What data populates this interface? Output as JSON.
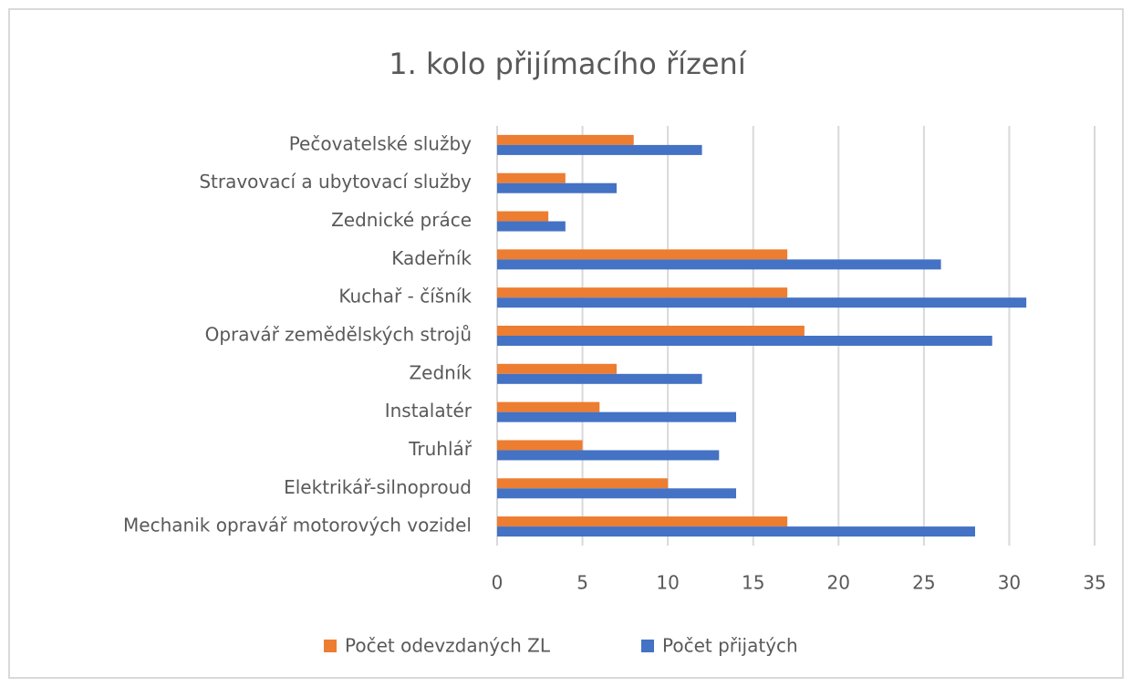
{
  "chart_data": {
    "type": "bar",
    "orientation": "horizontal",
    "title": "1. kolo přijímacího řízení",
    "categories": [
      "Pečovatelské služby",
      "Stravovací a ubytovací služby",
      "Zednické práce",
      "Kadeřník",
      "Kuchař - číšník",
      "Opravář zemědělských strojů",
      "Zedník",
      "Instalatér",
      "Truhlář",
      "Elektrikář-silnoproud",
      "Mechanik opravář motorových vozidel"
    ],
    "series": [
      {
        "name": "Počet odevzdaných ZL",
        "color": "#ed7d31",
        "values": [
          8,
          4,
          3,
          17,
          17,
          18,
          7,
          6,
          5,
          10,
          17
        ]
      },
      {
        "name": "Počet přijatých",
        "color": "#4472c4",
        "values": [
          12,
          7,
          4,
          26,
          31,
          29,
          12,
          14,
          13,
          14,
          28
        ]
      }
    ],
    "xlim": [
      0,
      35
    ],
    "xticks": [
      0,
      5,
      10,
      15,
      20,
      25,
      30,
      35
    ],
    "grid": true,
    "legend": "bottom"
  }
}
